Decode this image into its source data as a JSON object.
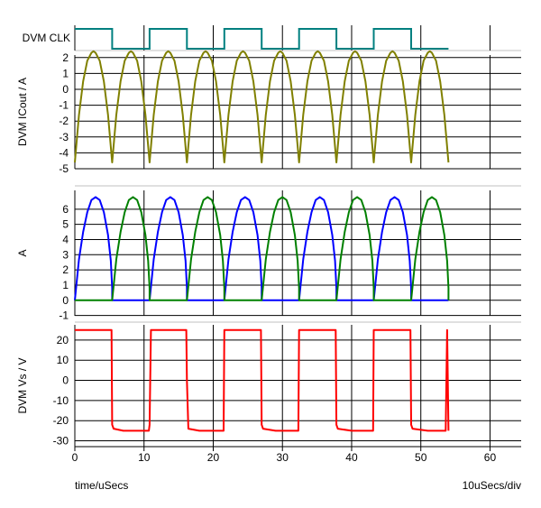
{
  "footer": {
    "xlabel": "time/uSecs",
    "scale": "10uSecs/div"
  },
  "chart_data": [
    {
      "type": "line",
      "ylabel": "DVM CLK",
      "color": "#008080",
      "x": [
        0,
        5.4,
        5.4,
        10.8,
        10.8,
        16.2,
        16.2,
        21.6,
        21.6,
        27.0,
        27.0,
        32.4,
        32.4,
        37.8,
        37.8,
        43.2,
        43.2,
        48.6,
        48.6,
        54.0
      ],
      "y": [
        1,
        1,
        0,
        0,
        1,
        1,
        0,
        0,
        1,
        1,
        0,
        0,
        1,
        1,
        0,
        0,
        1,
        1,
        0,
        0
      ]
    },
    {
      "type": "line",
      "ylabel": "DVM ICout / A",
      "ylim": [
        -5,
        2.5
      ],
      "yticks": [
        2,
        1,
        0,
        -1,
        -2,
        -3,
        -4,
        -5
      ],
      "series": [
        {
          "color": "#808000",
          "x": [
            0,
            0.6,
            1.2,
            1.8,
            2.4,
            2.7,
            3.0,
            3.6,
            4.2,
            4.8,
            5.4,
            6.0,
            6.6,
            7.2,
            7.8,
            8.1,
            8.4,
            9.0,
            9.6,
            10.2,
            10.8,
            11.4,
            12.0,
            12.6,
            13.2,
            13.5,
            13.8,
            14.4,
            15.0,
            15.6,
            16.2,
            16.8,
            17.4,
            18.0,
            18.6,
            18.9,
            19.2,
            19.8,
            20.4,
            21.0,
            21.6,
            22.2,
            22.8,
            23.4,
            24.0,
            24.3,
            24.6,
            25.2,
            25.8,
            26.4,
            27.0,
            27.6,
            28.2,
            28.8,
            29.4,
            29.7,
            30.0,
            30.6,
            31.2,
            31.8,
            32.4,
            33.0,
            33.6,
            34.2,
            34.8,
            35.1,
            35.4,
            36.0,
            36.6,
            37.2,
            37.8,
            38.4,
            39.0,
            39.6,
            40.2,
            40.5,
            40.8,
            41.4,
            42.0,
            42.6,
            43.2,
            43.8,
            44.4,
            45.0,
            45.6,
            45.9,
            46.2,
            46.8,
            47.4,
            48.0,
            48.6,
            49.2,
            49.8,
            50.4,
            51.0,
            51.3,
            51.6,
            52.2,
            52.8,
            53.4,
            54.0
          ],
          "y": [
            -4.6,
            -1.6,
            0.5,
            1.8,
            2.3,
            2.4,
            2.3,
            1.8,
            0.5,
            -1.6,
            -4.6,
            -1.6,
            0.5,
            1.8,
            2.3,
            2.4,
            2.3,
            1.8,
            0.5,
            -1.6,
            -4.6,
            -1.6,
            0.5,
            1.8,
            2.3,
            2.4,
            2.3,
            1.8,
            0.5,
            -1.6,
            -4.6,
            -1.6,
            0.5,
            1.8,
            2.3,
            2.4,
            2.3,
            1.8,
            0.5,
            -1.6,
            -4.6,
            -1.6,
            0.5,
            1.8,
            2.3,
            2.4,
            2.3,
            1.8,
            0.5,
            -1.6,
            -4.6,
            -1.6,
            0.5,
            1.8,
            2.3,
            2.4,
            2.3,
            1.8,
            0.5,
            -1.6,
            -4.6,
            -1.6,
            0.5,
            1.8,
            2.3,
            2.4,
            2.3,
            1.8,
            0.5,
            -1.6,
            -4.6,
            -1.6,
            0.5,
            1.8,
            2.3,
            2.4,
            2.3,
            1.8,
            0.5,
            -1.6,
            -4.6,
            -1.6,
            0.5,
            1.8,
            2.3,
            2.4,
            2.3,
            1.8,
            0.5,
            -1.6,
            -4.6,
            -1.6,
            0.5,
            1.8,
            2.3,
            2.4,
            2.3,
            1.8,
            0.5,
            -1.6,
            -4.6
          ]
        }
      ]
    },
    {
      "type": "line",
      "ylabel": "A",
      "ylim": [
        -1.5,
        7
      ],
      "yticks": [
        6,
        5,
        4,
        3,
        2,
        1,
        0,
        -1
      ],
      "series": [
        {
          "color": "#0000ff",
          "x": [
            0,
            0.6,
            1.2,
            1.8,
            2.4,
            3.0,
            3.6,
            4.2,
            4.8,
            5.2,
            5.4,
            5.4,
            10.8,
            10.8,
            11.4,
            12.0,
            12.6,
            13.2,
            13.8,
            14.4,
            15.0,
            15.6,
            16.0,
            16.2,
            16.2,
            21.6,
            21.6,
            22.2,
            22.8,
            23.4,
            24.0,
            24.6,
            25.2,
            25.8,
            26.4,
            26.8,
            27.0,
            27.0,
            32.4,
            32.4,
            33.0,
            33.6,
            34.2,
            34.8,
            35.4,
            36.0,
            36.6,
            37.2,
            37.6,
            37.8,
            37.8,
            43.2,
            43.2,
            43.8,
            44.4,
            45.0,
            45.6,
            46.2,
            46.8,
            47.4,
            48.0,
            48.4,
            48.6,
            48.6,
            54.0
          ],
          "y": [
            0,
            2.7,
            4.5,
            5.8,
            6.6,
            6.8,
            6.6,
            5.8,
            4.3,
            2.6,
            0.8,
            0,
            0,
            0,
            2.7,
            4.5,
            5.8,
            6.6,
            6.8,
            6.6,
            5.8,
            4.3,
            2.6,
            0.8,
            0,
            0,
            0,
            2.7,
            4.5,
            5.8,
            6.6,
            6.8,
            6.6,
            5.8,
            4.3,
            2.6,
            0.8,
            0,
            0,
            0,
            2.7,
            4.5,
            5.8,
            6.6,
            6.8,
            6.6,
            5.8,
            4.3,
            2.6,
            0.8,
            0,
            0,
            0,
            2.7,
            4.5,
            5.8,
            6.6,
            6.8,
            6.6,
            5.8,
            4.3,
            2.6,
            0.8,
            0,
            0
          ]
        },
        {
          "color": "#008000",
          "x": [
            0,
            5.4,
            5.4,
            6.0,
            6.6,
            7.2,
            7.8,
            8.4,
            9.0,
            9.6,
            10.2,
            10.6,
            10.8,
            10.8,
            16.2,
            16.2,
            16.8,
            17.4,
            18.0,
            18.6,
            19.2,
            19.8,
            20.4,
            21.0,
            21.4,
            21.6,
            21.6,
            27.0,
            27.0,
            27.6,
            28.2,
            28.8,
            29.4,
            30.0,
            30.6,
            31.2,
            31.8,
            32.2,
            32.4,
            32.4,
            37.8,
            37.8,
            38.4,
            39.0,
            39.6,
            40.2,
            40.8,
            41.4,
            42.0,
            42.6,
            43.0,
            43.2,
            43.2,
            48.6,
            48.6,
            49.2,
            49.8,
            50.4,
            51.0,
            51.6,
            52.2,
            52.8,
            53.4,
            53.8,
            54.0,
            54.0
          ],
          "y": [
            0,
            0,
            0,
            2.7,
            4.5,
            5.8,
            6.6,
            6.8,
            6.6,
            5.8,
            4.3,
            2.6,
            0.8,
            0,
            0,
            0,
            2.7,
            4.5,
            5.8,
            6.6,
            6.8,
            6.6,
            5.8,
            4.3,
            2.6,
            0.8,
            0,
            0,
            0,
            2.7,
            4.5,
            5.8,
            6.6,
            6.8,
            6.6,
            5.8,
            4.3,
            2.6,
            0.8,
            0,
            0,
            0,
            2.7,
            4.5,
            5.8,
            6.6,
            6.8,
            6.6,
            5.8,
            4.3,
            2.6,
            0.8,
            0,
            0,
            0,
            2.7,
            4.5,
            5.8,
            6.6,
            6.8,
            6.6,
            5.8,
            4.3,
            2.6,
            0.8,
            0
          ]
        }
      ]
    },
    {
      "type": "line",
      "ylabel": "DVM Vs / V",
      "xlabel": "time/uSecs",
      "ylim": [
        -32,
        28
      ],
      "yticks": [
        20,
        10,
        0,
        -10,
        -20,
        -30
      ],
      "xlim": [
        0,
        64.5
      ],
      "xticks": [
        0,
        10,
        20,
        30,
        40,
        50,
        60
      ],
      "series": [
        {
          "color": "#ff0000",
          "x": [
            0,
            5.3,
            5.4,
            5.6,
            7.0,
            10.7,
            10.8,
            11.0,
            16.1,
            16.2,
            16.4,
            18.0,
            21.5,
            21.6,
            21.8,
            26.9,
            27.0,
            27.2,
            29.0,
            32.3,
            32.4,
            32.6,
            37.7,
            37.8,
            38.0,
            40.0,
            43.1,
            43.2,
            43.4,
            48.5,
            48.6,
            48.8,
            51.0,
            53.6,
            53.8,
            54.0
          ],
          "y": [
            25,
            25,
            -22,
            -24,
            -25,
            -25,
            -22,
            25,
            25,
            0,
            -24,
            -25,
            -25,
            25,
            25,
            25,
            -22,
            -24,
            -25,
            -25,
            25,
            25,
            25,
            -22,
            -24,
            -25,
            -25,
            25,
            25,
            25,
            -22,
            -24,
            -25,
            -25,
            25,
            -25
          ]
        }
      ]
    }
  ]
}
